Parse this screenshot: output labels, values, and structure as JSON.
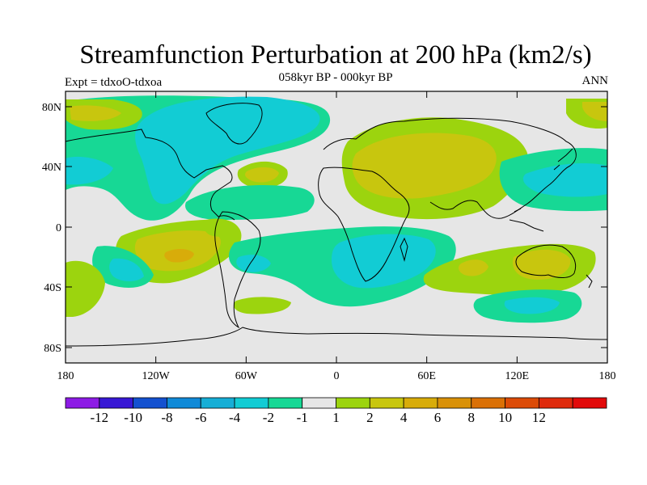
{
  "title": "Streamfunction Perturbation at 200 hPa (km2/s)",
  "subtitle": "058kyr BP - 000kyr BP",
  "left_label": "Expt = tdxoO-tdxoa",
  "right_label": "ANN",
  "lat_ticks": [
    "80N",
    "40N",
    "0",
    "40S",
    "80S"
  ],
  "lon_ticks": [
    "180",
    "120W",
    "60W",
    "0",
    "60E",
    "120E",
    "180"
  ],
  "colorbar": {
    "colors": [
      "#8d1be5",
      "#3818d5",
      "#1451d0",
      "#108ad8",
      "#16aed6",
      "#12ccd4",
      "#17d895",
      "#e6e6e6",
      "#9cd40e",
      "#c8c60e",
      "#d8ac0a",
      "#d99108",
      "#da7006",
      "#dc4b07",
      "#df2a0c",
      "#e20a0a"
    ],
    "labels": [
      "-12",
      "-10",
      "-8",
      "-6",
      "-4",
      "-2",
      "-1",
      "1",
      "2",
      "4",
      "6",
      "8",
      "10",
      "12"
    ]
  },
  "colors": {
    "neutral": "#e6e6e6",
    "pos1": "#9cd40e",
    "pos2": "#c8c60e",
    "pos3": "#d8ac0a",
    "neg1": "#17d895",
    "neg2": "#12ccd4"
  }
}
